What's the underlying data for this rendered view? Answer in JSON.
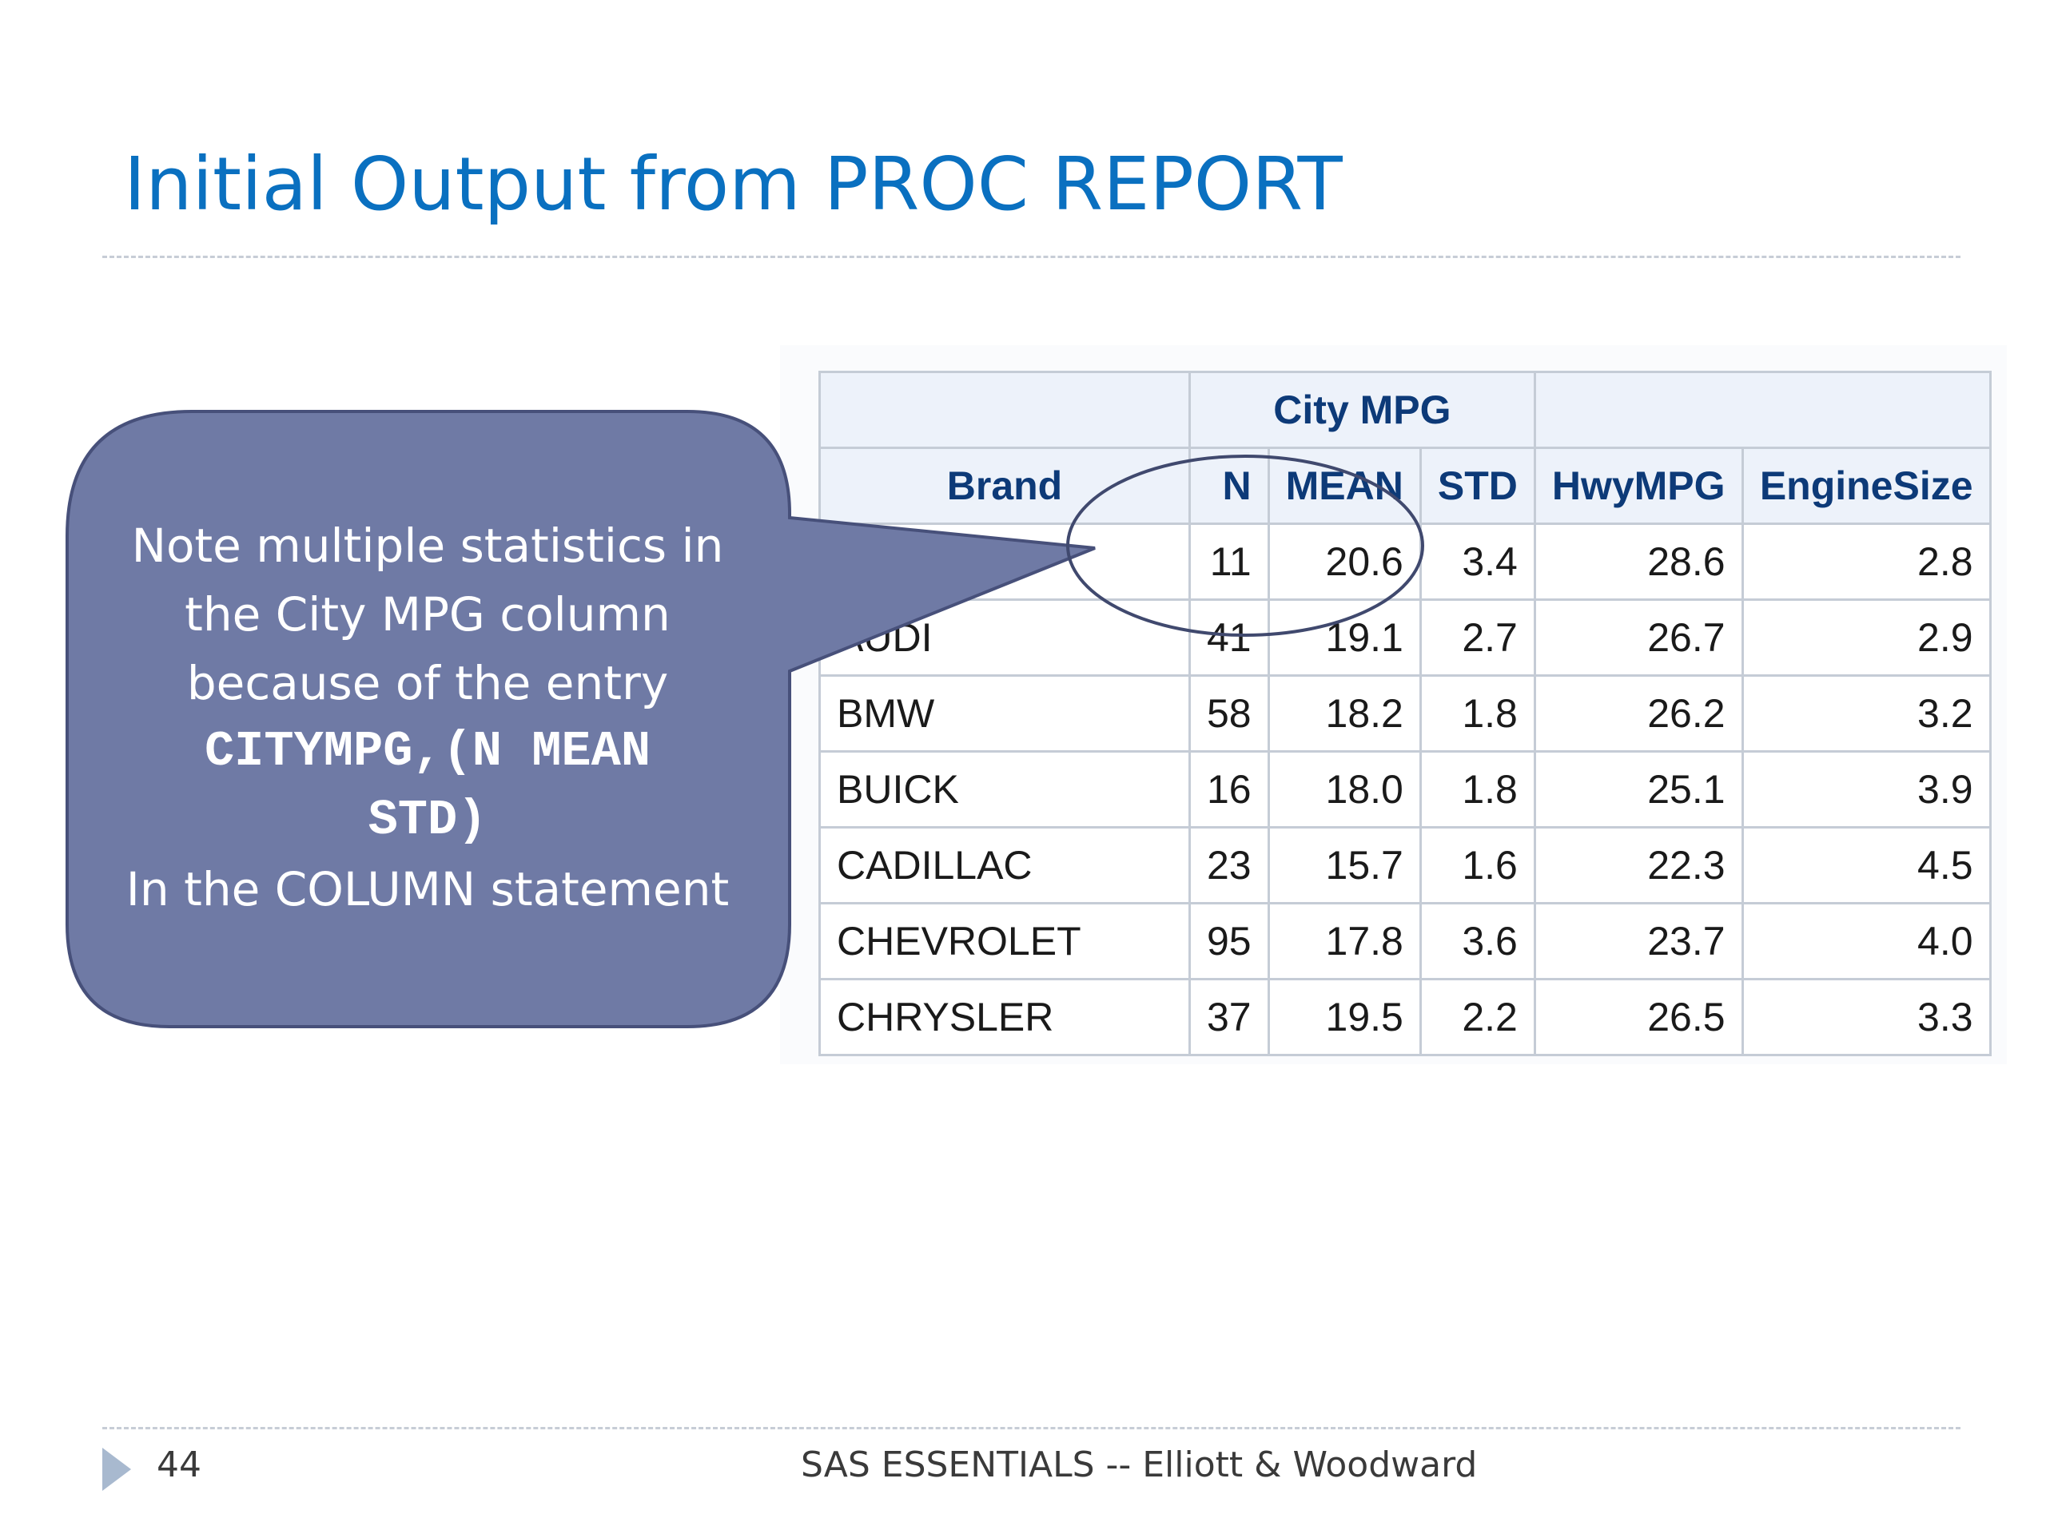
{
  "slide": {
    "title": "Initial Output from PROC REPORT"
  },
  "callout": {
    "lines": [
      "Note multiple statistics in",
      "the City MPG column",
      "because of the entry"
    ],
    "code_lines": [
      "CITYMPG,(N MEAN",
      "STD)"
    ],
    "last_line": "In the COLUMN statement",
    "fill_color": "#6f7aa5"
  },
  "report": {
    "group_header": "City MPG",
    "columns": {
      "brand": "Brand",
      "n": "N",
      "mean": "MEAN",
      "std": "STD",
      "hwy": "HwyMPG",
      "engine": "EngineSize"
    },
    "rows": [
      {
        "brand": "",
        "n": "11",
        "mean": "20.6",
        "std": "3.4",
        "hwy": "28.6",
        "engine": "2.8"
      },
      {
        "brand": "AUDI",
        "n": "41",
        "mean": "19.1",
        "std": "2.7",
        "hwy": "26.7",
        "engine": "2.9"
      },
      {
        "brand": "BMW",
        "n": "58",
        "mean": "18.2",
        "std": "1.8",
        "hwy": "26.2",
        "engine": "3.2"
      },
      {
        "brand": "BUICK",
        "n": "16",
        "mean": "18.0",
        "std": "1.8",
        "hwy": "25.1",
        "engine": "3.9"
      },
      {
        "brand": "CADILLAC",
        "n": "23",
        "mean": "15.7",
        "std": "1.6",
        "hwy": "22.3",
        "engine": "4.5"
      },
      {
        "brand": "CHEVROLET",
        "n": "95",
        "mean": "17.8",
        "std": "3.6",
        "hwy": "23.7",
        "engine": "4.0"
      },
      {
        "brand": "CHRYSLER",
        "n": "37",
        "mean": "19.5",
        "std": "2.2",
        "hwy": "26.5",
        "engine": "3.3"
      }
    ]
  },
  "footer": {
    "page_number": "44",
    "text": "SAS ESSENTIALS -- Elliott & Woodward"
  }
}
